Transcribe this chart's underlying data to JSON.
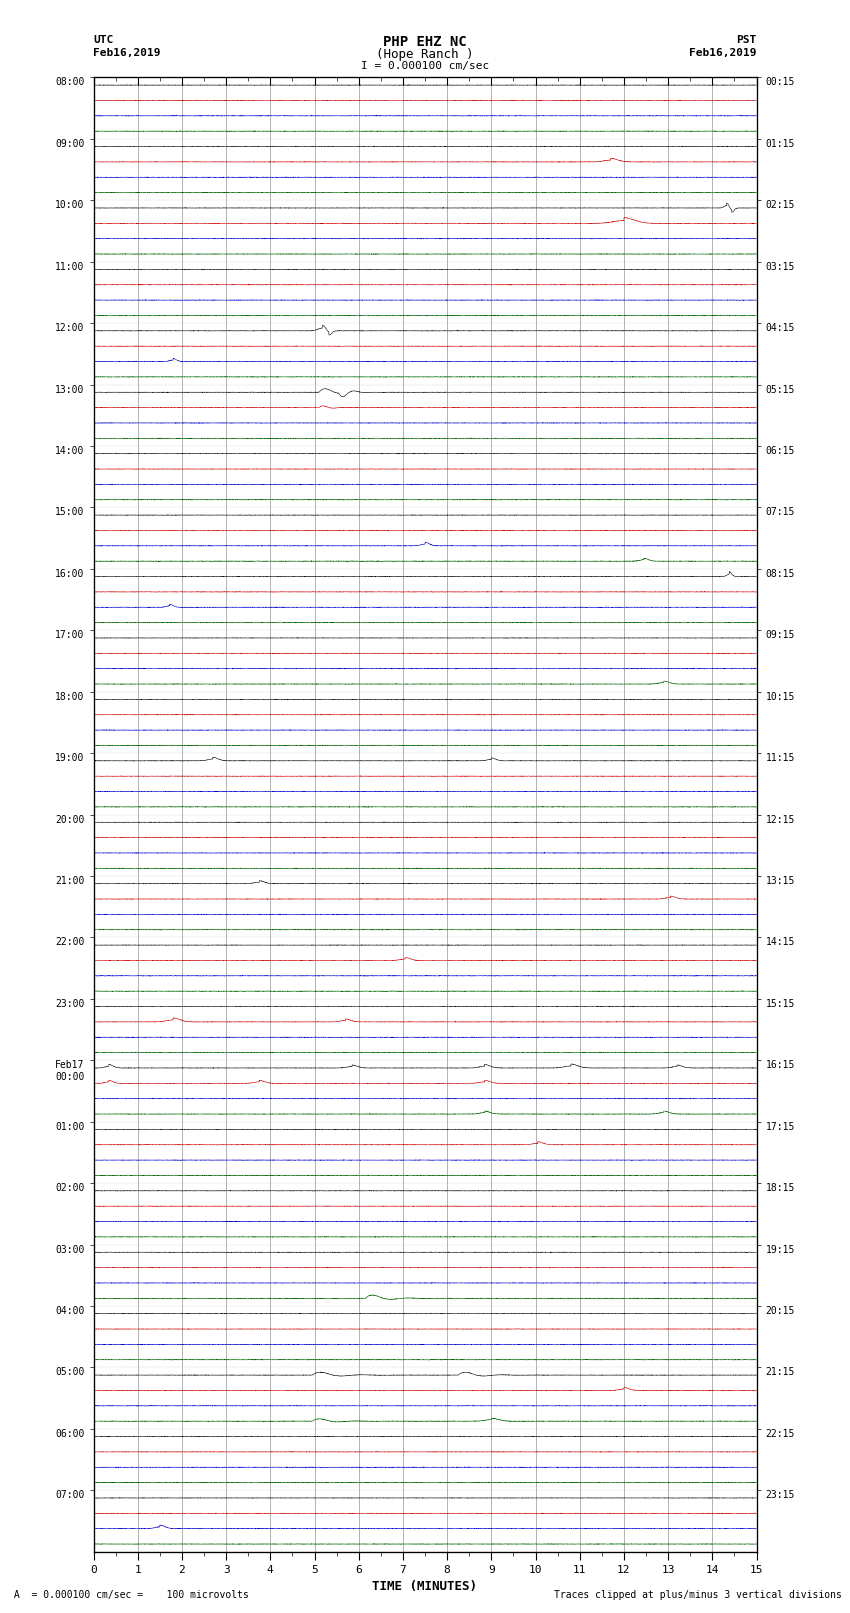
{
  "title_line1": "PHP EHZ NC",
  "title_line2": "(Hope Ranch )",
  "scale_label": "I = 0.000100 cm/sec",
  "left_header_line1": "UTC",
  "left_header_line2": "Feb16,2019",
  "right_header_line1": "PST",
  "right_header_line2": "Feb16,2019",
  "left_times_utc": [
    "08:00",
    "09:00",
    "10:00",
    "11:00",
    "12:00",
    "13:00",
    "14:00",
    "15:00",
    "16:00",
    "17:00",
    "18:00",
    "19:00",
    "20:00",
    "21:00",
    "22:00",
    "23:00",
    "Feb17\n00:00",
    "01:00",
    "02:00",
    "03:00",
    "04:00",
    "05:00",
    "06:00",
    "07:00"
  ],
  "right_times_pst": [
    "00:15",
    "01:15",
    "02:15",
    "03:15",
    "04:15",
    "05:15",
    "06:15",
    "07:15",
    "08:15",
    "09:15",
    "10:15",
    "11:15",
    "12:15",
    "13:15",
    "14:15",
    "15:15",
    "16:15",
    "17:15",
    "18:15",
    "19:15",
    "20:15",
    "21:15",
    "22:15",
    "23:15"
  ],
  "n_rows": 24,
  "n_traces_per_row": 4,
  "xlabel": "TIME (MINUTES)",
  "xticks": [
    0,
    1,
    2,
    3,
    4,
    5,
    6,
    7,
    8,
    9,
    10,
    11,
    12,
    13,
    14,
    15
  ],
  "footer_left": " A  = 0.000100 cm/sec =    100 microvolts",
  "footer_right": "Traces clipped at plus/minus 3 vertical divisions",
  "background_color": "#ffffff",
  "trace_colors": [
    "#000000",
    "#cc0000",
    "#0000cc",
    "#006600"
  ],
  "grid_color": "#666666",
  "n_samples": 9000,
  "noise_base": 0.04,
  "clip_level": 3.0,
  "trace_amplitude_scale": 0.38
}
